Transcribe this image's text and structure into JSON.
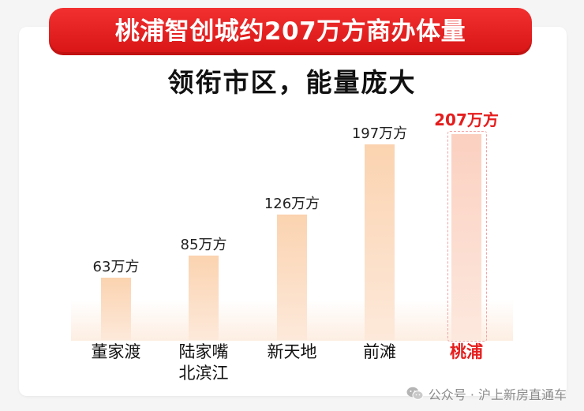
{
  "banner": {
    "title": "桃浦智创城约207万方商办体量"
  },
  "subtitle": "领衔市区，能量庞大",
  "chart_data": {
    "type": "bar",
    "categories": [
      "董家渡",
      "陆家嘴\n北滨江",
      "新天地",
      "前滩",
      "桃浦"
    ],
    "values": [
      63,
      85,
      126,
      197,
      207
    ],
    "labels": [
      "63万方",
      "85万方",
      "126万方",
      "197万方",
      "207万方"
    ],
    "highlight_index": 4,
    "unit": "万方"
  },
  "colors": {
    "highlight": "#e51d1d",
    "bar": "#fbd3b0",
    "banner": "#e21f1f"
  },
  "footer": {
    "icon": "wechat-icon",
    "text": "公众号 · 沪上新房直通车"
  }
}
